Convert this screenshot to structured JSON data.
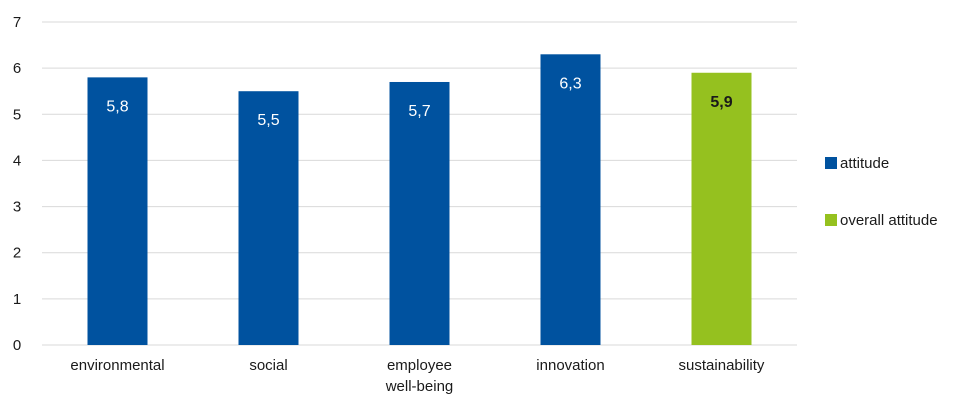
{
  "chart_data": {
    "type": "bar",
    "categories": [
      "environmental",
      "social",
      "employee well-being",
      "innovation",
      "sustainability"
    ],
    "category_lines": [
      [
        "environmental"
      ],
      [
        "social"
      ],
      [
        "employee",
        "well-being"
      ],
      [
        "innovation"
      ],
      [
        "sustainability"
      ]
    ],
    "values": [
      5.8,
      5.5,
      5.7,
      6.3,
      5.9
    ],
    "value_labels": [
      "5,8",
      "5,5",
      "5,7",
      "6,3",
      "5,9"
    ],
    "series_membership": [
      "attitude",
      "attitude",
      "attitude",
      "attitude",
      "overall attitude"
    ],
    "series": [
      {
        "name": "attitude",
        "color": "#00529F"
      },
      {
        "name": "overall attitude",
        "color": "#95C11F"
      }
    ],
    "ylim": [
      0,
      7
    ],
    "yticks": [
      "0",
      "1",
      "2",
      "3",
      "4",
      "5",
      "6",
      "7"
    ],
    "grid": true,
    "legend_position": "right",
    "value_label_colors": {
      "attitude": "#ffffff",
      "overall attitude": "#1a1a1a"
    },
    "gridline_color": "#d9d9d9",
    "axis_text_color": "#1a1a1a",
    "title": "",
    "xlabel": "",
    "ylabel": ""
  }
}
